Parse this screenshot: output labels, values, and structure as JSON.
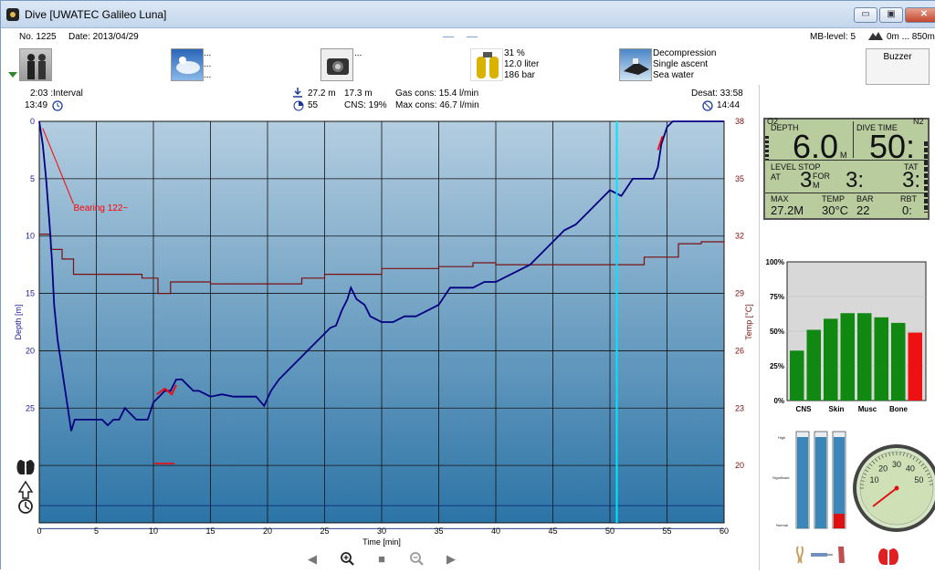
{
  "window": {
    "title": "Dive  [UWATEC Galileo Luna]",
    "btn_min": "▭",
    "btn_max": "▣",
    "btn_close": "✕"
  },
  "info": {
    "dive_no": "No. 1225",
    "date": "Date: 2013/04/29",
    "mb_level": "MB-level: 5",
    "altitude": "0m ... 850m",
    "weather_lines": [
      "...",
      "...",
      "..."
    ],
    "camera_line": "...",
    "tank": {
      "percent": "31 %",
      "volume": "12.0 liter",
      "pressure": "186 bar"
    },
    "dive_type": [
      "Decompression",
      "Single ascent",
      "Sea water"
    ],
    "buzzer": "Buzzer"
  },
  "stats": {
    "interval": "2:03 :Interval",
    "entry_time": "13:49",
    "max_depth": "27.2 m",
    "avg_depth": "17.3 m",
    "duration": "55",
    "cns": "CNS:  19%",
    "gas_cons": "Gas cons: 15.4 l/min",
    "max_cons": "Max cons: 46.7 l/min",
    "desat": "Desat:  33:58",
    "exit_time": "14:44"
  },
  "chart_data": {
    "type": "line",
    "xlabel": "Time [min]",
    "ylabel": "Depth [m]",
    "y2label": "Temp [°C]",
    "xlim": [
      0,
      60
    ],
    "ylim": [
      0,
      35
    ],
    "y2lim": [
      17,
      38
    ],
    "x_ticks": [
      0,
      5,
      10,
      15,
      20,
      25,
      30,
      35,
      40,
      45,
      50,
      55,
      60
    ],
    "y_ticks": [
      0,
      5,
      10,
      15,
      20,
      25,
      30
    ],
    "y2_ticks": [
      38,
      35,
      32,
      29,
      26,
      23,
      20
    ],
    "annotation": "Bearing 122~",
    "cursor_time": 50.6,
    "series": [
      {
        "values": [
          [
            0,
            0
          ],
          [
            0.3,
            2
          ],
          [
            0.6,
            5
          ],
          [
            0.9,
            9
          ],
          [
            1.1,
            12
          ],
          [
            1.3,
            16
          ],
          [
            1.6,
            19
          ],
          [
            1.9,
            21
          ],
          [
            2.2,
            23
          ],
          [
            2.5,
            25
          ],
          [
            2.8,
            27
          ],
          [
            3.1,
            26
          ],
          [
            3.5,
            26
          ],
          [
            4,
            26
          ],
          [
            4.5,
            26
          ],
          [
            5,
            26
          ],
          [
            5.5,
            26
          ],
          [
            6,
            26.5
          ],
          [
            6.5,
            26
          ],
          [
            7,
            26
          ],
          [
            7.5,
            25
          ],
          [
            8,
            25.5
          ],
          [
            8.5,
            26
          ],
          [
            9,
            26
          ],
          [
            9.5,
            26
          ],
          [
            10,
            24.5
          ],
          [
            10.5,
            24
          ],
          [
            11,
            23.5
          ],
          [
            11.5,
            23.5
          ],
          [
            12,
            22.5
          ],
          [
            12.5,
            22.5
          ],
          [
            13,
            23
          ],
          [
            13.5,
            23.5
          ],
          [
            14,
            23.5
          ],
          [
            15,
            24
          ],
          [
            16,
            23.8
          ],
          [
            17,
            24
          ],
          [
            18,
            24
          ],
          [
            19,
            24
          ],
          [
            19.7,
            24.8
          ],
          [
            20.3,
            23.5
          ],
          [
            21,
            22.5
          ],
          [
            22,
            21.5
          ],
          [
            23,
            20.5
          ],
          [
            24,
            19.5
          ],
          [
            25,
            18.5
          ],
          [
            25.5,
            18
          ],
          [
            26,
            17.8
          ],
          [
            26.5,
            16.5
          ],
          [
            27,
            15.5
          ],
          [
            27.3,
            14.5
          ],
          [
            27.8,
            15.5
          ],
          [
            28.5,
            16
          ],
          [
            29,
            17
          ],
          [
            30,
            17.5
          ],
          [
            31,
            17.5
          ],
          [
            32,
            17
          ],
          [
            33,
            17
          ],
          [
            34,
            16.5
          ],
          [
            35,
            16
          ],
          [
            36,
            14.5
          ],
          [
            37,
            14.5
          ],
          [
            38,
            14.5
          ],
          [
            39,
            14
          ],
          [
            40,
            14
          ],
          [
            41,
            13.5
          ],
          [
            42,
            13
          ],
          [
            43,
            12.5
          ],
          [
            44,
            11.5
          ],
          [
            45,
            10.5
          ],
          [
            46,
            9.5
          ],
          [
            47,
            9
          ],
          [
            48,
            8
          ],
          [
            49,
            7
          ],
          [
            50,
            6
          ],
          [
            51,
            6.5
          ],
          [
            52,
            5
          ],
          [
            53,
            5
          ],
          [
            53.8,
            5
          ],
          [
            54.2,
            4
          ],
          [
            54.5,
            2
          ],
          [
            55,
            0.5
          ],
          [
            55.5,
            0
          ],
          [
            57,
            0
          ],
          [
            58.5,
            0
          ],
          [
            60,
            0
          ]
        ]
      },
      {
        "values": [
          [
            0,
            32.1
          ],
          [
            1,
            31.3
          ],
          [
            2,
            30.8
          ],
          [
            3,
            30.0
          ],
          [
            5,
            30.0
          ],
          [
            9,
            29.8
          ],
          [
            10.4,
            29.0
          ],
          [
            11.5,
            29.6
          ],
          [
            15,
            29.5
          ],
          [
            20,
            29.5
          ],
          [
            23,
            29.8
          ],
          [
            25,
            30.0
          ],
          [
            30,
            30.3
          ],
          [
            35,
            30.4
          ],
          [
            38,
            30.6
          ],
          [
            40,
            30.5
          ],
          [
            45,
            30.5
          ],
          [
            50,
            30.5
          ],
          [
            53,
            30.9
          ],
          [
            55,
            30.9
          ],
          [
            56,
            31.6
          ],
          [
            58,
            31.7
          ],
          [
            60,
            31.5
          ]
        ]
      }
    ]
  },
  "dive_computer": {
    "o2": "O2",
    "n2": "N2",
    "depth_label": "DEPTH",
    "depth_value": "6.0",
    "depth_unit": "M",
    "dive_time_label": "DIVE TIME",
    "dive_time_value": "50:",
    "level_stop_label": "LEVEL STOP",
    "at_label": "AT",
    "stop_depth": "3",
    "stop_unit": "M",
    "for_label": "FOR",
    "stop_time": "3:",
    "tat_label": "TAT",
    "tat_value": "3:",
    "max_label": "MAX",
    "max_value": "27.2M",
    "temp_label": "TEMP",
    "temp_value": "30°C",
    "bar_label": "BAR",
    "bar_value": "22",
    "rbt_label": "RBT",
    "rbt_value": "0:"
  },
  "tissue": {
    "y_ticks": [
      "100%",
      "75%",
      "50%",
      "25%",
      "0%"
    ],
    "labels": [
      "CNS",
      "Skin",
      "Musc",
      "Bone"
    ],
    "bars": [
      0.36,
      0.51,
      0.59,
      0.63,
      0.63,
      0.6,
      0.56,
      0.49
    ],
    "bar_colors": [
      "#118811",
      "#118811",
      "#118811",
      "#118811",
      "#118811",
      "#118811",
      "#118811",
      "#ee1111"
    ]
  },
  "workload": {
    "labels": [
      "High",
      "Significant",
      "Normal"
    ],
    "bar_levels": [
      0,
      0,
      0.15
    ],
    "gauge_ticks": [
      "10",
      "20",
      "30",
      "40",
      "50"
    ],
    "gauge_value": 12
  },
  "colors": {
    "chart_top": "#aec9dd",
    "chart_bottom": "#2b72a3",
    "depth_line": "#000080",
    "temp_line": "#7a1010",
    "cursor": "#00e5ff",
    "alert": "#ff0000"
  }
}
